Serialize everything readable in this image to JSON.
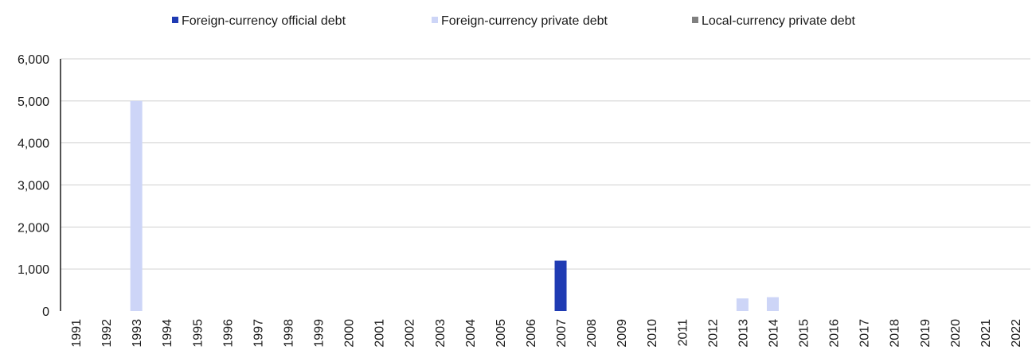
{
  "chart_data": {
    "type": "bar",
    "stacked": true,
    "categories": [
      "1991",
      "1992",
      "1993",
      "1994",
      "1995",
      "1996",
      "1997",
      "1998",
      "1999",
      "2000",
      "2001",
      "2002",
      "2003",
      "2004",
      "2005",
      "2006",
      "2007",
      "2008",
      "2009",
      "2010",
      "2011",
      "2012",
      "2013",
      "2014",
      "2015",
      "2016",
      "2017",
      "2018",
      "2019",
      "2020",
      "2021",
      "2022"
    ],
    "series": [
      {
        "name": "Foreign-currency official debt",
        "color": "#1f3bb3",
        "values": [
          0,
          0,
          0,
          0,
          0,
          0,
          0,
          0,
          0,
          0,
          0,
          0,
          0,
          0,
          0,
          0,
          1200,
          0,
          0,
          0,
          0,
          0,
          0,
          0,
          0,
          0,
          0,
          0,
          0,
          0,
          0,
          0
        ]
      },
      {
        "name": "Foreign-currency private debt",
        "color": "#cdd5f7",
        "values": [
          0,
          0,
          5000,
          0,
          0,
          0,
          0,
          0,
          0,
          0,
          0,
          0,
          0,
          0,
          0,
          0,
          0,
          0,
          0,
          0,
          0,
          0,
          300,
          330,
          0,
          0,
          0,
          0,
          0,
          0,
          0,
          0
        ]
      },
      {
        "name": "Local-currency private debt",
        "color": "#808080",
        "values": [
          0,
          0,
          0,
          0,
          0,
          0,
          0,
          0,
          0,
          0,
          0,
          0,
          0,
          0,
          0,
          0,
          0,
          0,
          0,
          0,
          0,
          0,
          0,
          0,
          0,
          0,
          0,
          0,
          0,
          0,
          0,
          0
        ]
      }
    ],
    "y_ticks": [
      "0",
      "1,000",
      "2,000",
      "3,000",
      "4,000",
      "5,000",
      "6,000"
    ],
    "ylim": [
      0,
      6000
    ],
    "title": "",
    "xlabel": "",
    "ylabel": "",
    "legend_position": "top",
    "grid": true
  }
}
